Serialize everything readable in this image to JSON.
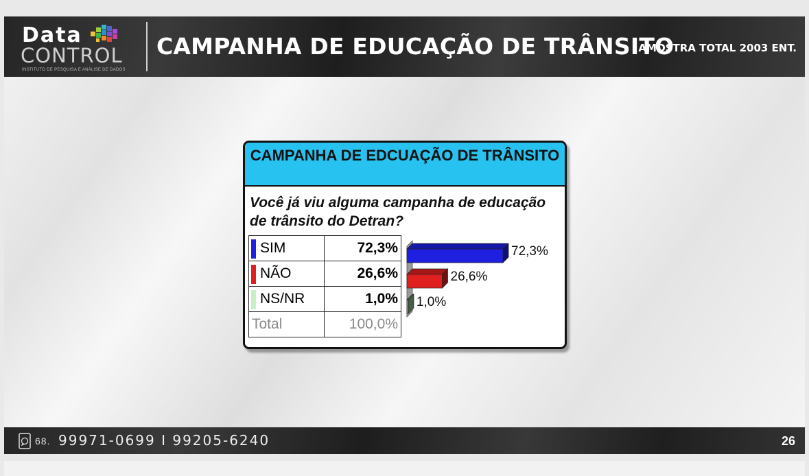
{
  "header": {
    "logo_top": "Data",
    "logo_bottom": "CONTROL",
    "logo_tagline": "INSTITUTO DE PESQUISA E ANÁLISE DE DADOS",
    "title": "CAMPANHA DE EDUCAÇÃO DE TRÂNSITO",
    "sample": "AMOSTRA TOTAL 2003 ENT."
  },
  "card": {
    "title": "CAMPANHA DE EDCUAÇÃO DE TRÂNSITO",
    "question": "Você já viu alguma campanha de educação de trânsito do Detran?",
    "rows": [
      {
        "label": "SIM",
        "value_text": "72,3%",
        "color": "#1f1fe0"
      },
      {
        "label": "NÃO",
        "value_text": "26,6%",
        "color": "#e01f1f"
      },
      {
        "label": "NS/NR",
        "value_text": "1,0%",
        "color": "#c8efc8"
      }
    ],
    "total_label": "Total",
    "total_value": "100,0%"
  },
  "chart_data": {
    "type": "bar",
    "orientation": "horizontal",
    "categories": [
      "SIM",
      "NÃO",
      "NS/NR"
    ],
    "values": [
      72.3,
      26.6,
      1.0
    ],
    "labels": [
      "72,3%",
      "26,6%",
      "1,0%"
    ],
    "colors": [
      "#1f1fe0",
      "#e01f1f",
      "#8fb98f"
    ],
    "title": "",
    "xlabel": "",
    "ylabel": "",
    "xlim": [
      0,
      72.3
    ]
  },
  "footer": {
    "phone_prefix": "68.",
    "phone_numbers": "99971-0699  I  99205-6240",
    "page_number": "26"
  }
}
